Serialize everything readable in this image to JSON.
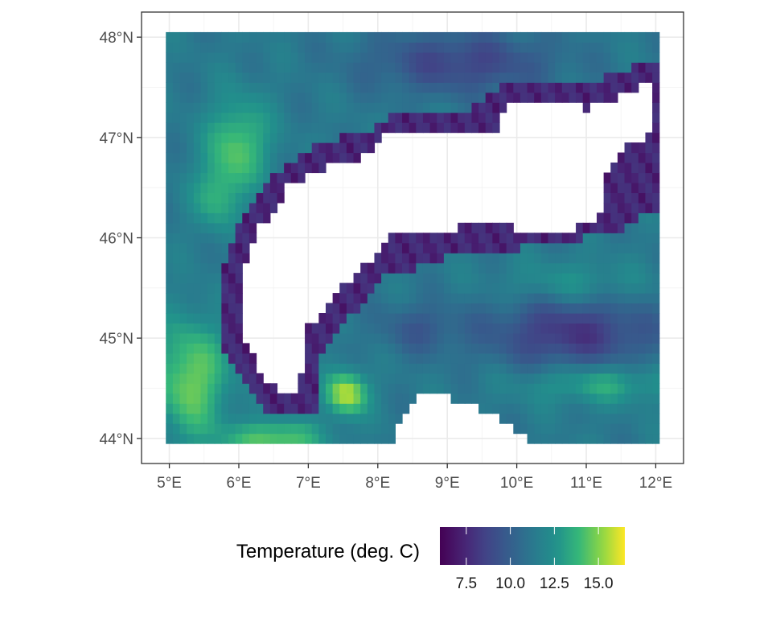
{
  "chart_data": {
    "type": "heatmap",
    "title": "",
    "xlabel": "",
    "ylabel": "",
    "x_ticks": [
      {
        "value": 5,
        "label": "5°E"
      },
      {
        "value": 6,
        "label": "6°E"
      },
      {
        "value": 7,
        "label": "7°E"
      },
      {
        "value": 8,
        "label": "8°E"
      },
      {
        "value": 9,
        "label": "9°E"
      },
      {
        "value": 10,
        "label": "10°E"
      },
      {
        "value": 11,
        "label": "11°E"
      },
      {
        "value": 12,
        "label": "12°E"
      }
    ],
    "y_ticks": [
      {
        "value": 44,
        "label": "44°N"
      },
      {
        "value": 45,
        "label": "45°N"
      },
      {
        "value": 46,
        "label": "46°N"
      },
      {
        "value": 47,
        "label": "47°N"
      },
      {
        "value": 48,
        "label": "48°N"
      }
    ],
    "xlim": [
      4.6,
      12.4
    ],
    "ylim": [
      43.75,
      48.25
    ],
    "data_extent": {
      "lon": [
        4.95,
        12.05
      ],
      "lat": [
        43.95,
        48.05
      ]
    },
    "grid": true,
    "legend": {
      "title": "Temperature (deg. C)",
      "position": "bottom",
      "min": 6.0,
      "max": 16.5,
      "ticks": [
        {
          "value": 7.5,
          "label": "7.5"
        },
        {
          "value": 10.0,
          "label": "10.0"
        },
        {
          "value": 12.5,
          "label": "12.5"
        },
        {
          "value": 15.0,
          "label": "15.0"
        }
      ]
    },
    "colormap": "viridis",
    "colors": [
      "#440154",
      "#3b528b",
      "#21908c",
      "#5dc863",
      "#fde725"
    ],
    "value_range": [
      6.0,
      16.5
    ],
    "missing_regions_description_note": null
  }
}
